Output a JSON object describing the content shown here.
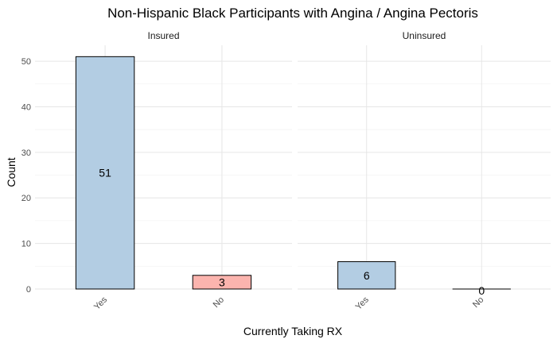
{
  "chart_data": {
    "type": "bar",
    "title": "Non-Hispanic Black Participants with Angina / Angina Pectoris",
    "xlabel": "Currently Taking RX",
    "ylabel": "Count",
    "categories": [
      "Yes",
      "No"
    ],
    "ylim": [
      0,
      53.5
    ],
    "yticks": [
      0,
      10,
      20,
      30,
      40,
      50
    ],
    "grid": true,
    "colors": {
      "Yes": "#b3cde3",
      "No": "#fbb4ae"
    },
    "panels": [
      {
        "name": "Insured",
        "values": [
          51,
          3
        ]
      },
      {
        "name": "Uninsured",
        "values": [
          6,
          0
        ]
      }
    ]
  }
}
